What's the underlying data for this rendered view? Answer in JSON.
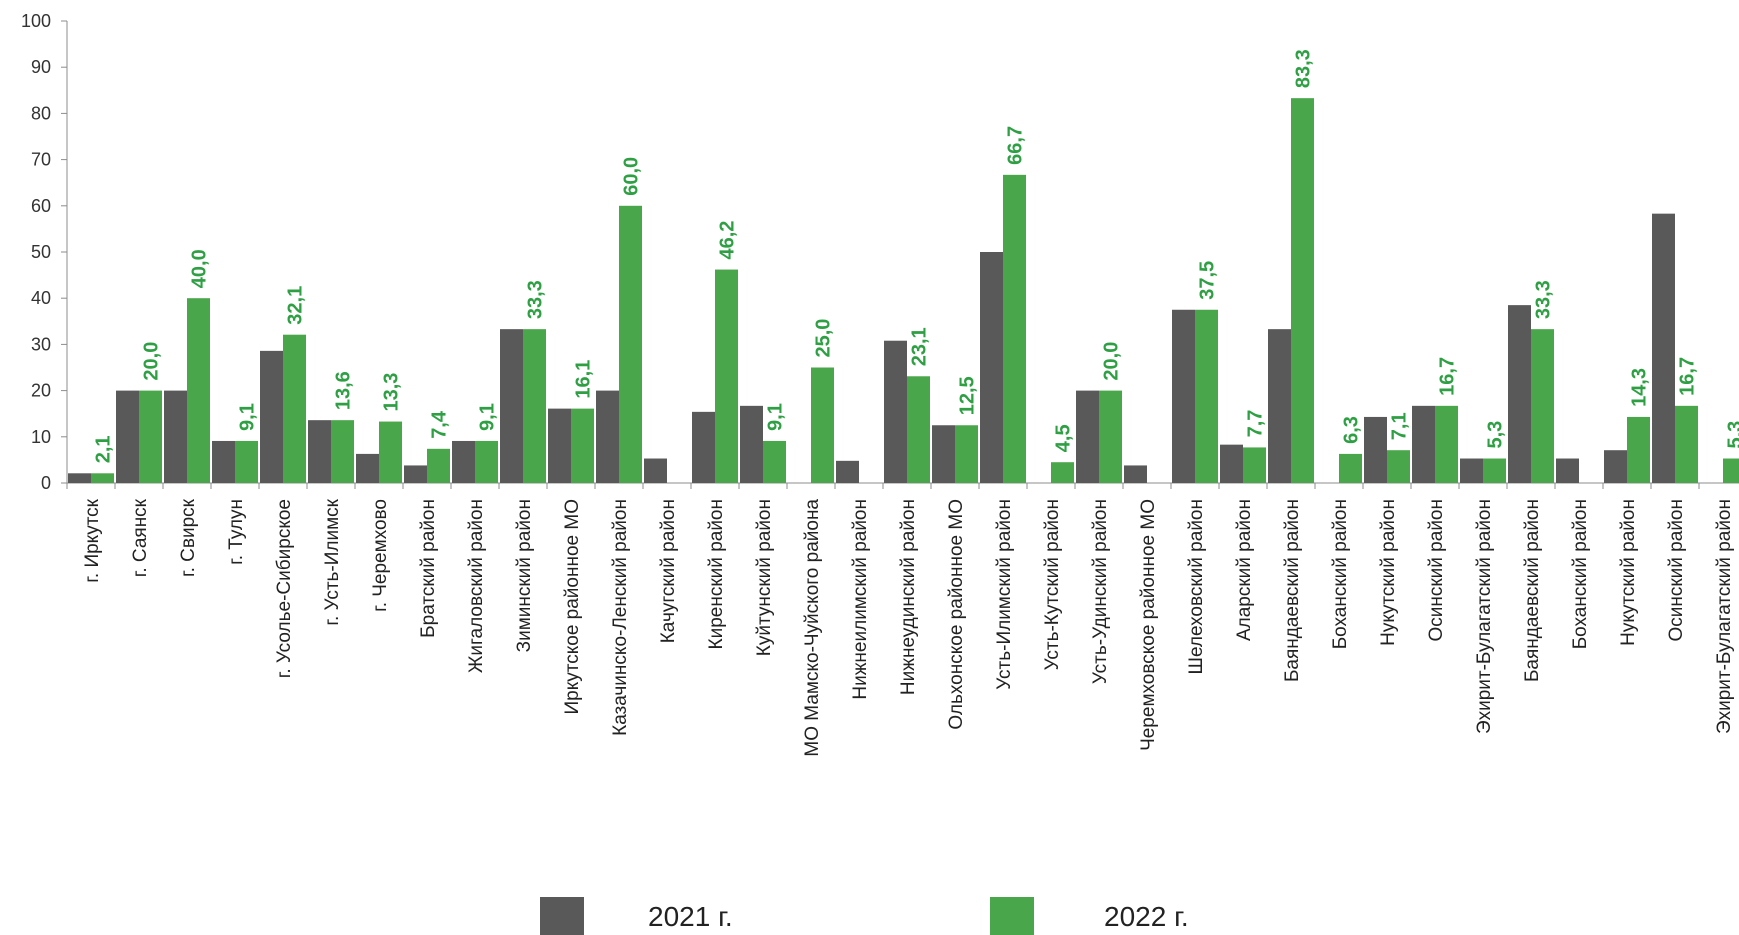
{
  "chart_data": {
    "type": "bar",
    "title": "",
    "xlabel": "",
    "ylabel": "",
    "ylim": [
      0,
      100
    ],
    "yticks": [
      "0",
      "10",
      "20",
      "30",
      "40",
      "50",
      "60",
      "70",
      "80",
      "90",
      "100"
    ],
    "legend_position": "bottom",
    "colors": {
      "2021 г.": "#595959",
      "2022 г.": "#4aa64a",
      "data_label": "#2ea043"
    },
    "categories": [
      "г. Иркутск",
      "г. Саянск",
      "г. Свирск",
      "г. Тулун",
      "г. Усолье-Сибирское",
      "г. Усть-Илимск",
      "г. Черемхово",
      "Братский район",
      "Жигаловский район",
      "Зиминский район",
      "Иркутское районное МО",
      "Казачинско-Ленский район",
      "Качугский район",
      "Киренский район",
      "Куйтунский район",
      "МО Мамско-Чуйского района",
      "Нижнеилимский район",
      "Нижнеудинский район",
      "Ольхонское районное МО",
      "Усть-Илимский район",
      "Усть-Кутский район",
      "Усть-Удинский район",
      "Черемховское районное МО",
      "Шелеховский район",
      "Аларский район",
      "Баяндаевский район",
      "Боханский район",
      "Нукутский район",
      "Осинский район",
      "Эхирит-Булагатский район",
      "Баяндаевский район",
      "Боханский район",
      "Нукутский район",
      "Осинский район",
      "Эхирит-Булагатский район"
    ],
    "series": [
      {
        "name": "2021 г.",
        "values": [
          2.1,
          20.0,
          20.0,
          9.1,
          28.6,
          13.6,
          6.3,
          3.8,
          9.1,
          33.3,
          16.1,
          20.0,
          5.3,
          15.4,
          16.7,
          0,
          4.8,
          30.8,
          12.5,
          50.0,
          0,
          20.0,
          3.8,
          37.5,
          8.3,
          33.3,
          0,
          14.3,
          16.7,
          5.3,
          38.5,
          5.3,
          7.1,
          58.3,
          0
        ],
        "labels": [
          "",
          "",
          "",
          "",
          "",
          "",
          "",
          "",
          "",
          "",
          "",
          "",
          "",
          "",
          "",
          "",
          "",
          "",
          "",
          "",
          "",
          "",
          "",
          "",
          "",
          "",
          "",
          "",
          "",
          "",
          "",
          "",
          "",
          "",
          ""
        ]
      },
      {
        "name": "2022 г.",
        "values": [
          2.1,
          20.0,
          40.0,
          9.1,
          32.1,
          13.6,
          13.3,
          7.4,
          9.1,
          33.3,
          16.1,
          60.0,
          0,
          46.2,
          9.1,
          25.0,
          0,
          23.1,
          12.5,
          66.7,
          4.5,
          20.0,
          0,
          37.5,
          7.7,
          83.3,
          6.3,
          7.1,
          16.7,
          5.3,
          33.3,
          0,
          14.3,
          16.7,
          5.3
        ],
        "labels": [
          "2,1",
          "20,0",
          "40,0",
          "9,1",
          "32,1",
          "13,6",
          "13,3",
          "7,4",
          "9,1",
          "33,3",
          "16,1",
          "60,0",
          "",
          "46,2",
          "9,1",
          "25,0",
          "",
          "23,1",
          "12,5",
          "66,7",
          "4,5",
          "20,0",
          "",
          "37,5",
          "7,7",
          "83,3",
          "6,3",
          "7,1",
          "16,7",
          "5,3",
          "33,3",
          "",
          "14,3",
          "16,7",
          "5,3"
        ]
      }
    ]
  }
}
